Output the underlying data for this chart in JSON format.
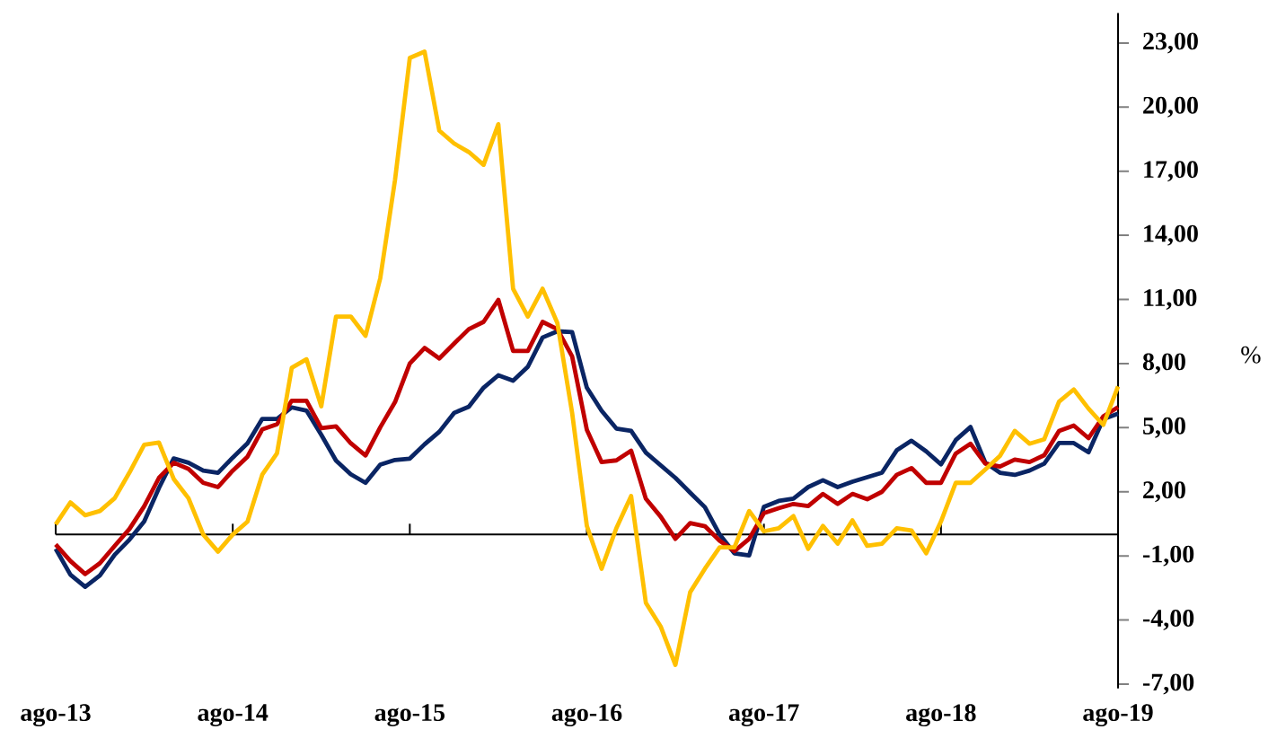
{
  "chart_data": {
    "type": "line",
    "ylabel": "%",
    "x": [
      "2013-08",
      "2013-09",
      "2013-10",
      "2013-11",
      "2013-12",
      "2014-01",
      "2014-02",
      "2014-03",
      "2014-04",
      "2014-05",
      "2014-06",
      "2014-07",
      "2014-08",
      "2014-09",
      "2014-10",
      "2014-11",
      "2014-12",
      "2015-01",
      "2015-02",
      "2015-03",
      "2015-04",
      "2015-05",
      "2015-06",
      "2015-07",
      "2015-08",
      "2015-09",
      "2015-10",
      "2015-11",
      "2015-12",
      "2016-01",
      "2016-02",
      "2016-03",
      "2016-04",
      "2016-05",
      "2016-06",
      "2016-07",
      "2016-08",
      "2016-09",
      "2016-10",
      "2016-11",
      "2016-12",
      "2017-01",
      "2017-02",
      "2017-03",
      "2017-04",
      "2017-05",
      "2017-06",
      "2017-07",
      "2017-08",
      "2017-09",
      "2017-10",
      "2017-11",
      "2017-12",
      "2018-01",
      "2018-02",
      "2018-03",
      "2018-04",
      "2018-05",
      "2018-06",
      "2018-07",
      "2018-08",
      "2018-09",
      "2018-10",
      "2018-11",
      "2018-12",
      "2019-01",
      "2019-02",
      "2019-03",
      "2019-04",
      "2019-05",
      "2019-06",
      "2019-07",
      "2019-08"
    ],
    "series": [
      {
        "color": "#0a2564",
        "values": [
          -0.67,
          -1.88,
          -2.45,
          -1.91,
          -0.95,
          -0.24,
          0.61,
          2.18,
          3.56,
          3.36,
          2.99,
          2.89,
          3.6,
          4.27,
          5.41,
          5.41,
          5.95,
          5.8,
          4.67,
          3.46,
          2.82,
          2.42,
          3.27,
          3.49,
          3.55,
          4.22,
          4.81,
          5.69,
          5.98,
          6.87,
          7.45,
          7.2,
          7.85,
          9.22,
          9.51,
          9.47,
          6.87,
          5.79,
          4.96,
          4.85,
          3.83,
          3.24,
          2.65,
          1.96,
          1.28,
          0.0,
          -0.88,
          -0.98,
          1.3,
          1.57,
          1.68,
          2.22,
          2.54,
          2.22,
          2.47,
          2.68,
          2.89,
          3.94,
          4.39,
          3.89,
          3.28,
          4.42,
          5.03,
          3.37,
          2.89,
          2.79,
          2.99,
          3.32,
          4.28,
          4.28,
          3.85,
          5.4,
          5.65
        ]
      },
      {
        "color": "#c00000",
        "values": [
          -0.46,
          -1.24,
          -1.85,
          -1.34,
          -0.53,
          0.26,
          1.32,
          2.65,
          3.36,
          3.07,
          2.42,
          2.22,
          2.99,
          3.64,
          4.92,
          5.16,
          6.26,
          6.26,
          4.98,
          5.06,
          4.27,
          3.7,
          5.02,
          6.2,
          8.0,
          8.73,
          8.24,
          8.93,
          9.61,
          9.95,
          10.98,
          8.59,
          8.59,
          9.95,
          9.61,
          8.34,
          4.9,
          3.39,
          3.47,
          3.92,
          1.67,
          0.84,
          -0.2,
          0.53,
          0.39,
          -0.29,
          -0.78,
          -0.2,
          1.0,
          1.23,
          1.43,
          1.33,
          1.9,
          1.43,
          1.9,
          1.65,
          2.0,
          2.79,
          3.11,
          2.42,
          2.42,
          3.79,
          4.25,
          3.32,
          3.18,
          3.51,
          3.39,
          3.71,
          4.85,
          5.1,
          4.51,
          5.53,
          5.96
        ]
      },
      {
        "color": "#ffc000",
        "values": [
          0.47,
          1.5,
          0.9,
          1.1,
          1.7,
          2.9,
          4.2,
          4.3,
          2.6,
          1.7,
          0.0,
          -0.8,
          0.0,
          0.6,
          2.8,
          3.8,
          7.8,
          8.2,
          6.0,
          10.2,
          10.2,
          9.3,
          12.0,
          16.6,
          22.3,
          22.6,
          18.9,
          18.3,
          17.9,
          17.3,
          19.2,
          11.5,
          10.2,
          11.5,
          9.9,
          5.7,
          0.4,
          -1.6,
          0.3,
          1.8,
          -3.2,
          -4.3,
          -6.1,
          -2.7,
          -1.6,
          -0.6,
          -0.6,
          1.1,
          0.15,
          0.29,
          0.86,
          -0.67,
          0.4,
          -0.43,
          0.66,
          -0.53,
          -0.43,
          0.29,
          0.19,
          -0.88,
          0.61,
          2.42,
          2.42,
          3.04,
          3.68,
          4.85,
          4.25,
          4.46,
          6.22,
          6.79,
          5.89,
          5.13,
          6.93
        ]
      }
    ],
    "xlim": [
      "2013-08",
      "2019-08"
    ],
    "xticks": [
      {
        "value": "2013-08",
        "label": "ago-13"
      },
      {
        "value": "2014-08",
        "label": "ago-14"
      },
      {
        "value": "2015-08",
        "label": "ago-15"
      },
      {
        "value": "2016-08",
        "label": "ago-16"
      },
      {
        "value": "2017-08",
        "label": "ago-17"
      },
      {
        "value": "2018-08",
        "label": "ago-18"
      },
      {
        "value": "2019-08",
        "label": "ago-19"
      }
    ],
    "ylim": [
      -7.2,
      24.4
    ],
    "yticks": [
      {
        "value": -7,
        "label": "-7,00"
      },
      {
        "value": -4,
        "label": "-4,00"
      },
      {
        "value": -1,
        "label": "-1,00"
      },
      {
        "value": 2,
        "label": "2,00"
      },
      {
        "value": 5,
        "label": "5,00"
      },
      {
        "value": 8,
        "label": "8,00"
      },
      {
        "value": 11,
        "label": "11,00"
      },
      {
        "value": 14,
        "label": "14,00"
      },
      {
        "value": 17,
        "label": "17,00"
      },
      {
        "value": 20,
        "label": "20,00"
      },
      {
        "value": 23,
        "label": "23,00"
      }
    ]
  }
}
